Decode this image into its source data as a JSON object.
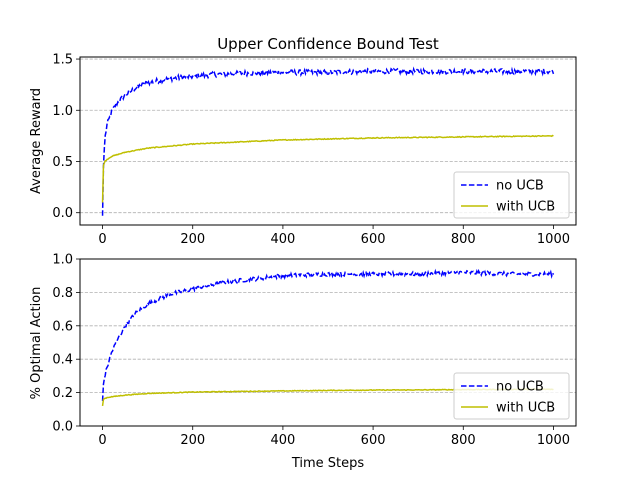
{
  "chart_data": [
    {
      "type": "line",
      "title": "Upper Confidence Bound Test",
      "xlabel": "",
      "ylabel": "Average Reward",
      "xlim": [
        -50,
        1050
      ],
      "ylim": [
        -0.12,
        1.52
      ],
      "xticks": [
        0,
        200,
        400,
        600,
        800,
        1000
      ],
      "yticks": [
        0.0,
        0.5,
        1.0,
        1.5
      ],
      "ytick_labels": [
        "0.0",
        "0.5",
        "1.0",
        "1.5"
      ],
      "grid": "y dashed",
      "legend": "lower-right",
      "series": [
        {
          "name": "no UCB",
          "color": "#0000ff",
          "style": "dashed",
          "x": [
            0,
            2,
            5,
            10,
            20,
            30,
            50,
            75,
            100,
            150,
            200,
            250,
            300,
            400,
            500,
            600,
            700,
            800,
            900,
            1000
          ],
          "y": [
            -0.03,
            0.45,
            0.72,
            0.86,
            0.98,
            1.06,
            1.15,
            1.22,
            1.27,
            1.31,
            1.33,
            1.35,
            1.36,
            1.37,
            1.37,
            1.38,
            1.38,
            1.38,
            1.38,
            1.38
          ],
          "noise": 0.025
        },
        {
          "name": "with UCB",
          "color": "#bfbf00",
          "style": "solid",
          "x": [
            0,
            2,
            5,
            10,
            20,
            50,
            100,
            200,
            300,
            400,
            500,
            600,
            700,
            800,
            900,
            1000
          ],
          "y": [
            0.1,
            0.46,
            0.5,
            0.52,
            0.55,
            0.59,
            0.63,
            0.67,
            0.69,
            0.71,
            0.72,
            0.73,
            0.735,
            0.74,
            0.745,
            0.75
          ],
          "noise": 0.004
        }
      ]
    },
    {
      "type": "line",
      "title": "",
      "xlabel": "Time Steps",
      "ylabel": "% Optimal Action",
      "xlim": [
        -50,
        1050
      ],
      "ylim": [
        0.0,
        1.0
      ],
      "xticks": [
        0,
        200,
        400,
        600,
        800,
        1000
      ],
      "yticks": [
        0.0,
        0.2,
        0.4,
        0.6,
        0.8,
        1.0
      ],
      "ytick_labels": [
        "0.0",
        "0.2",
        "0.4",
        "0.6",
        "0.8",
        "1.0"
      ],
      "grid": "y dashed",
      "legend": "lower-right",
      "series": [
        {
          "name": "no UCB",
          "color": "#0000ff",
          "style": "dashed",
          "x": [
            0,
            2,
            5,
            10,
            20,
            30,
            50,
            75,
            100,
            150,
            200,
            250,
            300,
            400,
            500,
            600,
            700,
            800,
            900,
            1000
          ],
          "y": [
            0.15,
            0.25,
            0.3,
            0.35,
            0.44,
            0.5,
            0.6,
            0.68,
            0.73,
            0.79,
            0.82,
            0.85,
            0.87,
            0.9,
            0.91,
            0.91,
            0.91,
            0.92,
            0.91,
            0.91
          ],
          "noise": 0.012
        },
        {
          "name": "with UCB",
          "color": "#bfbf00",
          "style": "solid",
          "x": [
            0,
            2,
            5,
            10,
            20,
            50,
            100,
            200,
            300,
            400,
            500,
            600,
            700,
            800,
            900,
            1000
          ],
          "y": [
            0.12,
            0.16,
            0.165,
            0.17,
            0.175,
            0.185,
            0.195,
            0.203,
            0.207,
            0.21,
            0.213,
            0.215,
            0.216,
            0.218,
            0.219,
            0.22
          ],
          "noise": 0.002
        }
      ]
    }
  ]
}
